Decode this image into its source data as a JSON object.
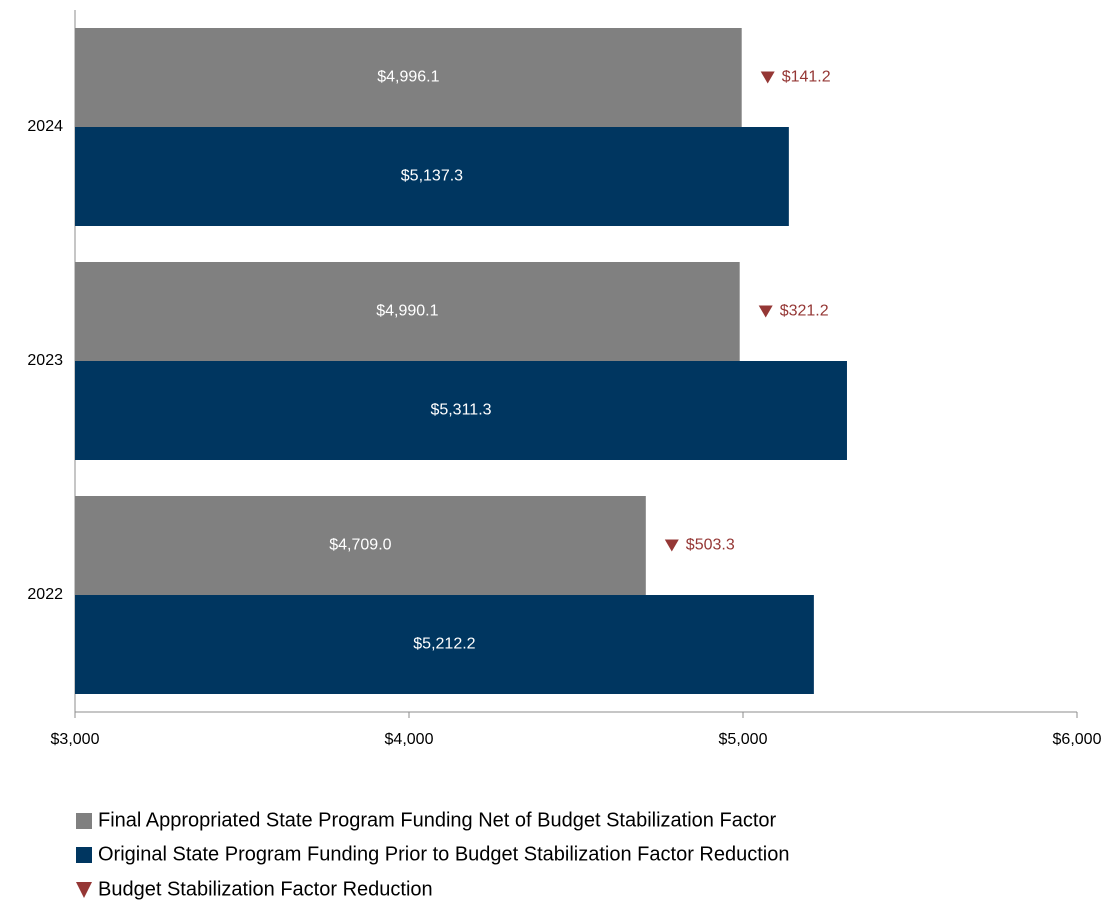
{
  "chart_data": {
    "type": "bar",
    "orientation": "horizontal",
    "categories": [
      "2024",
      "2023",
      "2022"
    ],
    "series": [
      {
        "name": "Final Appropriated State Program Funding Net of Budget Stabilization Factor",
        "color": "#808080",
        "values": [
          4996.1,
          4990.1,
          4709.0
        ],
        "value_labels": [
          "$4,996.1",
          "$4,990.1",
          "$4,709.0"
        ]
      },
      {
        "name": "Original State Program Funding Prior to Budget Stabilization Factor Reduction",
        "color": "#003660",
        "values": [
          5137.3,
          5311.3,
          5212.2
        ],
        "value_labels": [
          "$5,137.3",
          "$5,311.3",
          "$5,212.2"
        ]
      },
      {
        "name": "Budget Stabilization Factor Reduction",
        "color": "#953735",
        "marker": "triangle-down",
        "values": [
          141.2,
          321.2,
          503.3
        ],
        "value_labels": [
          "$141.2",
          "$321.2",
          "$503.3"
        ]
      }
    ],
    "xlim": [
      3000,
      6000
    ],
    "xticks": [
      {
        "value": 3000,
        "label": "$3,000"
      },
      {
        "value": 4000,
        "label": "$4,000"
      },
      {
        "value": 5000,
        "label": "$5,000"
      },
      {
        "value": 6000,
        "label": "$6,000"
      }
    ],
    "grid": false
  }
}
